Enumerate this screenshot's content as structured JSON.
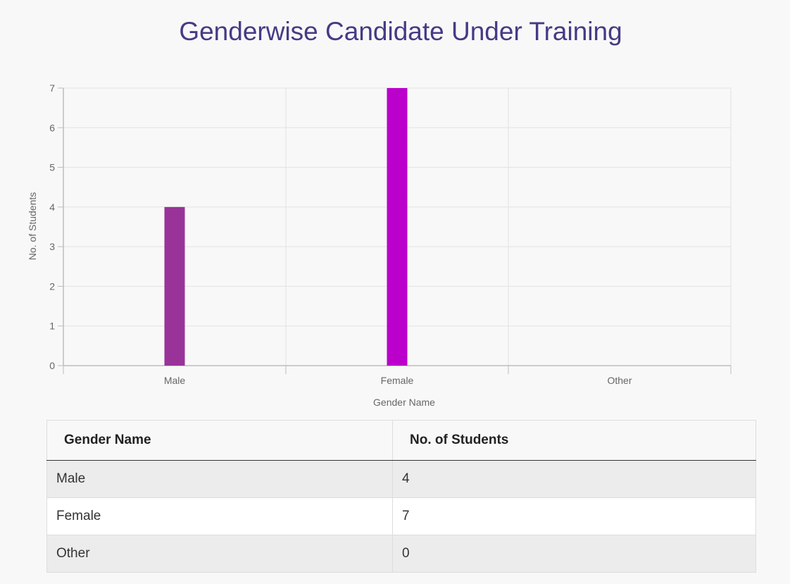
{
  "page": {
    "title": "Genderwise Candidate Under Training"
  },
  "chart_data": {
    "type": "bar",
    "categories": [
      "Male",
      "Female",
      "Other"
    ],
    "values": [
      4,
      7,
      0
    ],
    "colors": [
      "#993399",
      "#bb00cc",
      "#888888"
    ],
    "xlabel": "Gender Name",
    "ylabel": "No. of Students",
    "ylim": [
      0,
      7
    ],
    "yticks": [
      0,
      1,
      2,
      3,
      4,
      5,
      6,
      7
    ],
    "grid": true,
    "legend": "none"
  },
  "table": {
    "headers": [
      "Gender Name",
      "No. of Students"
    ],
    "rows": [
      [
        "Male",
        "4"
      ],
      [
        "Female",
        "7"
      ],
      [
        "Other",
        "0"
      ]
    ]
  }
}
